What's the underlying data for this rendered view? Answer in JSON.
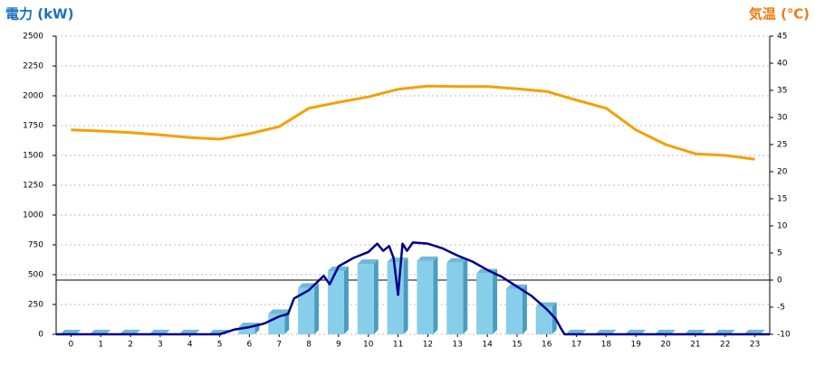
{
  "chart_data": {
    "type": "combo",
    "y_title": "電力 (kW)",
    "y2_title": "気温 (℃)",
    "categories": [
      "0",
      "1",
      "2",
      "3",
      "4",
      "5",
      "6",
      "7",
      "8",
      "9",
      "10",
      "11",
      "12",
      "13",
      "14",
      "15",
      "16",
      "17",
      "18",
      "19",
      "20",
      "21",
      "22",
      "23"
    ],
    "xlim": [
      -0.5,
      23.5
    ],
    "ylim": [
      0,
      2500
    ],
    "yticks": [
      0,
      250,
      500,
      750,
      1000,
      1250,
      1500,
      1750,
      2000,
      2250,
      2500
    ],
    "y2lim": [
      -10,
      45
    ],
    "y2ticks": [
      -10,
      -5,
      0,
      5,
      10,
      15,
      20,
      25,
      30,
      35,
      40,
      45
    ],
    "grid": true,
    "series": [
      {
        "type": "bar",
        "color": "#87ceeb",
        "values": [
          0,
          0,
          0,
          0,
          0,
          0,
          60,
          170,
          390,
          530,
          590,
          605,
          615,
          600,
          510,
          380,
          230,
          0,
          0,
          0,
          0,
          0,
          0,
          0
        ]
      },
      {
        "type": "line",
        "color": "#00008b",
        "x": [
          -0.5,
          5,
          5.5,
          6,
          6.5,
          7,
          7.3,
          7.5,
          8,
          8.5,
          8.7,
          9,
          9.5,
          10,
          10.3,
          10.5,
          10.7,
          10.85,
          11,
          11.15,
          11.3,
          11.5,
          12,
          12.5,
          13,
          13.5,
          14,
          14.5,
          15,
          15.5,
          16,
          16.3,
          16.5,
          16.6,
          23.5
        ],
        "values": [
          0,
          0,
          40,
          60,
          90,
          150,
          170,
          300,
          370,
          490,
          420,
          570,
          640,
          690,
          760,
          700,
          740,
          640,
          330,
          760,
          700,
          770,
          760,
          720,
          660,
          610,
          540,
          480,
          400,
          320,
          210,
          130,
          40,
          0,
          0
        ]
      },
      {
        "type": "line",
        "axis": "y2",
        "color": "#f5a000",
        "values": [
          27.7,
          27.5,
          27.2,
          26.8,
          26.3,
          26,
          27,
          28.3,
          31.7,
          32.8,
          33.8,
          35.2,
          35.8,
          35.7,
          35.7,
          35.3,
          34.8,
          33.2,
          31.7,
          27.7,
          25,
          23.3,
          23,
          22.3
        ]
      }
    ]
  }
}
